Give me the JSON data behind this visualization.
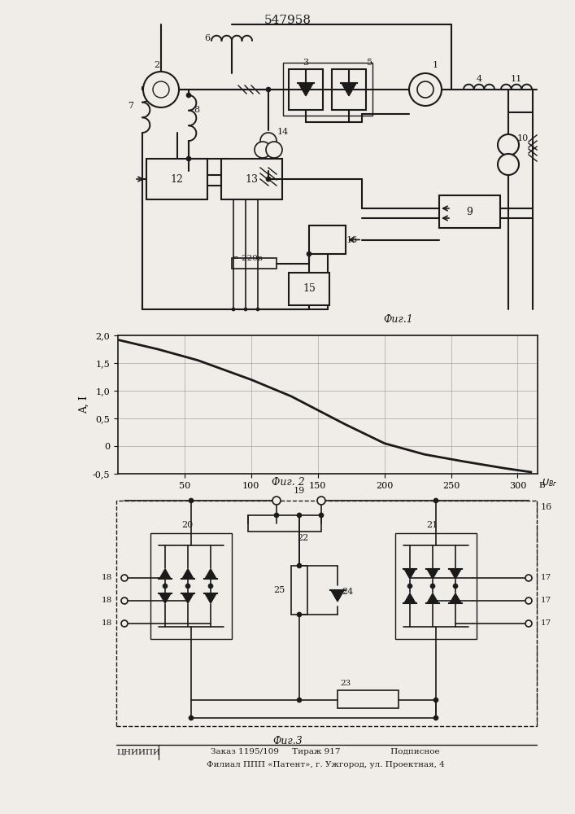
{
  "title": "547958",
  "fig1_label": "Фиг.1",
  "fig2_label": "Фиг. 2",
  "fig3_label": "Фиг.3",
  "graph_x": [
    0,
    30,
    60,
    100,
    130,
    150,
    170,
    200,
    230,
    260,
    290,
    310
  ],
  "graph_y": [
    1.92,
    1.75,
    1.55,
    1.2,
    0.9,
    0.65,
    0.4,
    0.05,
    -0.15,
    -0.28,
    -0.4,
    -0.47
  ],
  "graph_xlim": [
    0,
    315
  ],
  "graph_ylim": [
    -0.5,
    2.0
  ],
  "graph_xticks": [
    50,
    100,
    150,
    200,
    250,
    300
  ],
  "graph_yticks": [
    -0.5,
    0,
    0.5,
    1.0,
    1.5,
    2.0
  ],
  "graph_ytick_labels": [
    "-0,5",
    "0",
    "0,5",
    "1,0",
    "1,5",
    "2,0"
  ],
  "footer_line1": "ЦНИИПИ Заказ 1195/109     Тираж 917                 Подписное",
  "footer_line2": "Филиал ППП «Патент», г. Ужгород, ул. Проектная, 4",
  "bg_color": "#f0ede8",
  "line_color": "#1a1a1a",
  "grid_color": "#777777"
}
